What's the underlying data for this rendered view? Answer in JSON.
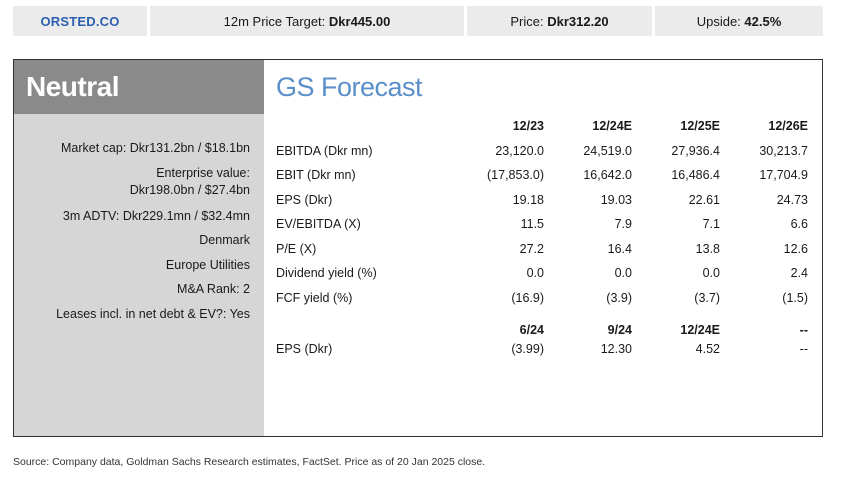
{
  "header": {
    "ticker": "ORSTED.CO",
    "target_label": "12m Price Target: ",
    "target_value": "Dkr445.00",
    "price_label": "Price: ",
    "price_value": "Dkr312.20",
    "upside_label": "Upside: ",
    "upside_value": "42.5%"
  },
  "sidebar": {
    "rating": "Neutral",
    "market_cap": "Market cap: Dkr131.2bn / $18.1bn",
    "ev_line1": "Enterprise value:",
    "ev_line2": "Dkr198.0bn / $27.4bn",
    "adtv": "3m ADTV: Dkr229.1mn / $32.4mn",
    "country": "Denmark",
    "sector": "Europe Utilities",
    "ma_rank": "M&A Rank: 2",
    "leases": "Leases incl. in net debt & EV?: Yes"
  },
  "forecast": {
    "title": "GS Forecast",
    "years": [
      "12/23",
      "12/24E",
      "12/25E",
      "12/26E"
    ],
    "rows": [
      {
        "label": "EBITDA (Dkr mn)",
        "values": [
          "23,120.0",
          "24,519.0",
          "27,936.4",
          "30,213.7"
        ]
      },
      {
        "label": "EBIT (Dkr mn)",
        "values": [
          "(17,853.0)",
          "16,642.0",
          "16,486.4",
          "17,704.9"
        ]
      },
      {
        "label": "EPS (Dkr)",
        "values": [
          "19.18",
          "19.03",
          "22.61",
          "24.73"
        ]
      },
      {
        "label": "EV/EBITDA (X)",
        "values": [
          "11.5",
          "7.9",
          "7.1",
          "6.6"
        ]
      },
      {
        "label": "P/E (X)",
        "values": [
          "27.2",
          "16.4",
          "13.8",
          "12.6"
        ]
      },
      {
        "label": "Dividend yield (%)",
        "values": [
          "0.0",
          "0.0",
          "0.0",
          "2.4"
        ]
      },
      {
        "label": "FCF yield (%)",
        "values": [
          "(16.9)",
          "(3.9)",
          "(3.7)",
          "(1.5)"
        ]
      }
    ],
    "quarters": [
      "6/24",
      "9/24",
      "12/24E",
      "--"
    ],
    "quarter_row": {
      "label": "EPS (Dkr)",
      "values": [
        "(3.99)",
        "12.30",
        "4.52",
        "--"
      ]
    }
  },
  "source": "Source: Company data, Goldman Sachs Research estimates, FactSet. Price as of 20 Jan 2025 close."
}
